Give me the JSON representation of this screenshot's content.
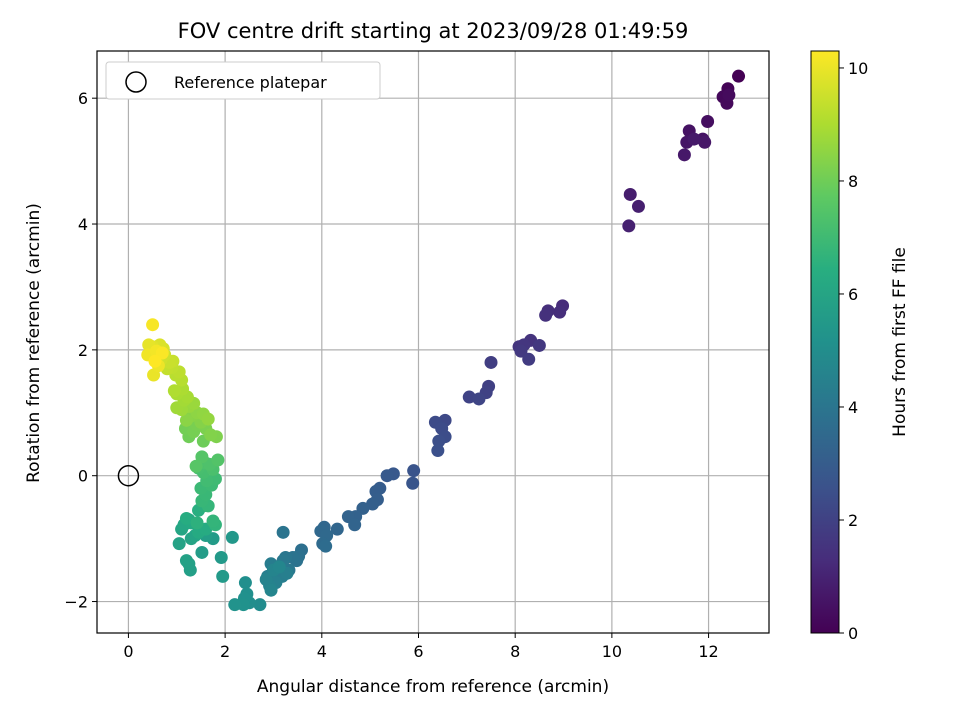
{
  "chart_data": {
    "type": "scatter",
    "title": "FOV centre drift starting at 2023/09/28 01:49:59",
    "xlabel": "Angular distance from reference (arcmin)",
    "ylabel": "Rotation from reference (arcmin)",
    "xlim": [
      -0.65,
      13.25
    ],
    "ylim": [
      -2.5,
      6.75
    ],
    "xticks": [
      0,
      2,
      4,
      6,
      8,
      10,
      12
    ],
    "yticks": [
      -2,
      0,
      2,
      4,
      6
    ],
    "grid": true,
    "colorbar": {
      "label": "Hours from first FF file",
      "range": [
        0,
        10.3
      ],
      "ticks": [
        0,
        2,
        4,
        6,
        8,
        10
      ],
      "colormap": "viridis"
    },
    "legend": {
      "location": "top-left",
      "entries": [
        {
          "label": "Reference platepar",
          "marker": "open-circle"
        }
      ]
    },
    "reference_point": {
      "x": 0,
      "y": 0
    },
    "points": [
      {
        "x": 12.62,
        "y": 6.35,
        "h": 0.0
      },
      {
        "x": 12.4,
        "y": 6.15,
        "h": 0.1
      },
      {
        "x": 12.3,
        "y": 6.02,
        "h": 0.2
      },
      {
        "x": 12.38,
        "y": 5.92,
        "h": 0.25
      },
      {
        "x": 12.42,
        "y": 6.05,
        "h": 0.3
      },
      {
        "x": 11.98,
        "y": 5.63,
        "h": 0.4
      },
      {
        "x": 11.6,
        "y": 5.48,
        "h": 0.5
      },
      {
        "x": 11.88,
        "y": 5.35,
        "h": 0.55
      },
      {
        "x": 11.55,
        "y": 5.3,
        "h": 0.6
      },
      {
        "x": 11.92,
        "y": 5.3,
        "h": 0.65
      },
      {
        "x": 11.5,
        "y": 5.1,
        "h": 0.7
      },
      {
        "x": 11.7,
        "y": 5.35,
        "h": 0.75
      },
      {
        "x": 10.38,
        "y": 4.47,
        "h": 0.85
      },
      {
        "x": 10.55,
        "y": 4.28,
        "h": 0.9
      },
      {
        "x": 10.35,
        "y": 3.97,
        "h": 0.95
      },
      {
        "x": 8.98,
        "y": 2.7,
        "h": 1.3
      },
      {
        "x": 8.92,
        "y": 2.6,
        "h": 1.35
      },
      {
        "x": 8.68,
        "y": 2.62,
        "h": 1.4
      },
      {
        "x": 8.63,
        "y": 2.55,
        "h": 1.45
      },
      {
        "x": 8.32,
        "y": 2.15,
        "h": 1.55
      },
      {
        "x": 8.08,
        "y": 2.05,
        "h": 1.6
      },
      {
        "x": 8.18,
        "y": 2.08,
        "h": 1.65
      },
      {
        "x": 8.5,
        "y": 2.07,
        "h": 1.7
      },
      {
        "x": 8.12,
        "y": 1.98,
        "h": 1.75
      },
      {
        "x": 8.28,
        "y": 1.85,
        "h": 1.8
      },
      {
        "x": 7.5,
        "y": 1.8,
        "h": 1.9
      },
      {
        "x": 7.45,
        "y": 1.42,
        "h": 2.0
      },
      {
        "x": 7.4,
        "y": 1.32,
        "h": 2.05
      },
      {
        "x": 7.05,
        "y": 1.25,
        "h": 2.1
      },
      {
        "x": 7.25,
        "y": 1.22,
        "h": 2.15
      },
      {
        "x": 6.55,
        "y": 0.88,
        "h": 2.3
      },
      {
        "x": 6.35,
        "y": 0.85,
        "h": 2.35
      },
      {
        "x": 6.48,
        "y": 0.75,
        "h": 2.4
      },
      {
        "x": 6.55,
        "y": 0.62,
        "h": 2.45
      },
      {
        "x": 6.42,
        "y": 0.55,
        "h": 2.5
      },
      {
        "x": 6.4,
        "y": 0.4,
        "h": 2.55
      },
      {
        "x": 5.9,
        "y": 0.08,
        "h": 2.7
      },
      {
        "x": 5.88,
        "y": -0.12,
        "h": 2.75
      },
      {
        "x": 5.48,
        "y": 0.03,
        "h": 2.85
      },
      {
        "x": 5.35,
        "y": 0.0,
        "h": 2.9
      },
      {
        "x": 5.2,
        "y": -0.2,
        "h": 3.0
      },
      {
        "x": 5.12,
        "y": -0.25,
        "h": 3.05
      },
      {
        "x": 5.15,
        "y": -0.38,
        "h": 3.1
      },
      {
        "x": 5.05,
        "y": -0.45,
        "h": 3.15
      },
      {
        "x": 4.85,
        "y": -0.52,
        "h": 3.2
      },
      {
        "x": 4.7,
        "y": -0.65,
        "h": 3.25
      },
      {
        "x": 4.55,
        "y": -0.65,
        "h": 3.3
      },
      {
        "x": 4.68,
        "y": -0.78,
        "h": 3.35
      },
      {
        "x": 4.32,
        "y": -0.85,
        "h": 3.4
      },
      {
        "x": 4.05,
        "y": -0.82,
        "h": 3.45
      },
      {
        "x": 3.98,
        "y": -0.88,
        "h": 3.5
      },
      {
        "x": 4.1,
        "y": -0.95,
        "h": 3.55
      },
      {
        "x": 4.02,
        "y": -1.08,
        "h": 3.6
      },
      {
        "x": 4.08,
        "y": -1.12,
        "h": 3.65
      },
      {
        "x": 3.58,
        "y": -1.18,
        "h": 3.8
      },
      {
        "x": 3.52,
        "y": -1.28,
        "h": 3.85
      },
      {
        "x": 3.48,
        "y": -1.35,
        "h": 3.9
      },
      {
        "x": 3.4,
        "y": -1.3,
        "h": 3.95
      },
      {
        "x": 3.2,
        "y": -0.9,
        "h": 4.0
      },
      {
        "x": 3.25,
        "y": -1.3,
        "h": 4.05
      },
      {
        "x": 3.32,
        "y": -1.5,
        "h": 4.1
      },
      {
        "x": 3.2,
        "y": -1.35,
        "h": 4.15
      },
      {
        "x": 3.1,
        "y": -1.45,
        "h": 4.2
      },
      {
        "x": 3.02,
        "y": -1.55,
        "h": 4.25
      },
      {
        "x": 2.95,
        "y": -1.4,
        "h": 4.3
      },
      {
        "x": 3.18,
        "y": -1.6,
        "h": 4.35
      },
      {
        "x": 2.88,
        "y": -1.6,
        "h": 4.4
      },
      {
        "x": 3.28,
        "y": -1.55,
        "h": 4.45
      },
      {
        "x": 3.05,
        "y": -1.7,
        "h": 4.5
      },
      {
        "x": 2.92,
        "y": -1.75,
        "h": 4.55
      },
      {
        "x": 2.85,
        "y": -1.65,
        "h": 4.6
      },
      {
        "x": 3.0,
        "y": -1.5,
        "h": 4.65
      },
      {
        "x": 2.95,
        "y": -1.82,
        "h": 4.7
      },
      {
        "x": 3.12,
        "y": -1.45,
        "h": 4.75
      },
      {
        "x": 2.72,
        "y": -2.05,
        "h": 5.0
      },
      {
        "x": 2.5,
        "y": -2.02,
        "h": 5.05
      },
      {
        "x": 2.42,
        "y": -1.7,
        "h": 5.1
      },
      {
        "x": 2.45,
        "y": -1.88,
        "h": 5.15
      },
      {
        "x": 2.4,
        "y": -1.95,
        "h": 5.2
      },
      {
        "x": 2.38,
        "y": -2.05,
        "h": 5.25
      },
      {
        "x": 2.2,
        "y": -2.05,
        "h": 5.3
      },
      {
        "x": 2.15,
        "y": -0.98,
        "h": 5.5
      },
      {
        "x": 1.92,
        "y": -1.3,
        "h": 5.55
      },
      {
        "x": 1.95,
        "y": -1.6,
        "h": 5.6
      },
      {
        "x": 1.75,
        "y": -1.0,
        "h": 5.65
      },
      {
        "x": 1.52,
        "y": -1.22,
        "h": 5.7
      },
      {
        "x": 1.6,
        "y": -0.95,
        "h": 5.75
      },
      {
        "x": 1.28,
        "y": -1.5,
        "h": 5.8
      },
      {
        "x": 1.25,
        "y": -1.4,
        "h": 5.85
      },
      {
        "x": 1.2,
        "y": -1.35,
        "h": 5.9
      },
      {
        "x": 1.05,
        "y": -1.08,
        "h": 5.95
      },
      {
        "x": 1.3,
        "y": -1.0,
        "h": 6.0
      },
      {
        "x": 1.38,
        "y": -0.95,
        "h": 6.05
      },
      {
        "x": 1.1,
        "y": -0.85,
        "h": 6.1
      },
      {
        "x": 1.15,
        "y": -0.78,
        "h": 6.15
      },
      {
        "x": 1.25,
        "y": -0.7,
        "h": 6.2
      },
      {
        "x": 1.3,
        "y": -0.75,
        "h": 6.25
      },
      {
        "x": 1.45,
        "y": -0.9,
        "h": 6.3
      },
      {
        "x": 1.6,
        "y": -0.85,
        "h": 6.35
      },
      {
        "x": 1.2,
        "y": -0.68,
        "h": 6.4
      },
      {
        "x": 1.45,
        "y": -0.55,
        "h": 6.5
      },
      {
        "x": 1.55,
        "y": -0.48,
        "h": 6.55
      },
      {
        "x": 1.42,
        "y": -0.75,
        "h": 6.6
      },
      {
        "x": 1.8,
        "y": -0.78,
        "h": 6.7
      },
      {
        "x": 1.75,
        "y": -0.72,
        "h": 6.75
      },
      {
        "x": 1.65,
        "y": -0.48,
        "h": 6.8
      },
      {
        "x": 1.52,
        "y": -0.4,
        "h": 6.85
      },
      {
        "x": 1.6,
        "y": -0.3,
        "h": 6.9
      },
      {
        "x": 1.5,
        "y": -0.2,
        "h": 6.95
      },
      {
        "x": 1.72,
        "y": -0.15,
        "h": 7.0
      },
      {
        "x": 1.8,
        "y": -0.05,
        "h": 7.05
      },
      {
        "x": 1.62,
        "y": -0.08,
        "h": 7.1
      },
      {
        "x": 1.55,
        "y": 0.05,
        "h": 7.2
      },
      {
        "x": 1.45,
        "y": 0.12,
        "h": 7.25
      },
      {
        "x": 1.75,
        "y": 0.1,
        "h": 7.3
      },
      {
        "x": 1.6,
        "y": 0.2,
        "h": 7.35
      },
      {
        "x": 1.68,
        "y": 0.18,
        "h": 7.4
      },
      {
        "x": 1.85,
        "y": 0.25,
        "h": 7.5
      },
      {
        "x": 1.52,
        "y": 0.3,
        "h": 7.55
      },
      {
        "x": 1.4,
        "y": 0.15,
        "h": 7.6
      },
      {
        "x": 1.55,
        "y": 0.55,
        "h": 8.0
      },
      {
        "x": 1.25,
        "y": 0.62,
        "h": 8.05
      },
      {
        "x": 1.18,
        "y": 0.75,
        "h": 8.1
      },
      {
        "x": 1.35,
        "y": 0.7,
        "h": 8.15
      },
      {
        "x": 1.4,
        "y": 0.82,
        "h": 8.2
      },
      {
        "x": 1.6,
        "y": 0.75,
        "h": 8.25
      },
      {
        "x": 1.82,
        "y": 0.62,
        "h": 8.3
      },
      {
        "x": 1.7,
        "y": 0.65,
        "h": 8.35
      },
      {
        "x": 1.5,
        "y": 0.85,
        "h": 8.4
      },
      {
        "x": 1.3,
        "y": 0.95,
        "h": 8.45
      },
      {
        "x": 1.2,
        "y": 0.88,
        "h": 8.5
      },
      {
        "x": 1.42,
        "y": 1.0,
        "h": 8.55
      },
      {
        "x": 1.55,
        "y": 0.98,
        "h": 8.6
      },
      {
        "x": 1.65,
        "y": 0.9,
        "h": 8.65
      },
      {
        "x": 1.25,
        "y": 1.1,
        "h": 8.7
      },
      {
        "x": 1.35,
        "y": 1.15,
        "h": 8.75
      },
      {
        "x": 1.1,
        "y": 1.05,
        "h": 8.8
      },
      {
        "x": 1.0,
        "y": 1.08,
        "h": 8.85
      },
      {
        "x": 1.15,
        "y": 1.2,
        "h": 8.9
      },
      {
        "x": 1.22,
        "y": 1.25,
        "h": 8.95
      },
      {
        "x": 1.0,
        "y": 1.3,
        "h": 9.0
      },
      {
        "x": 1.12,
        "y": 1.38,
        "h": 9.05
      },
      {
        "x": 0.95,
        "y": 1.35,
        "h": 9.1
      },
      {
        "x": 1.1,
        "y": 1.52,
        "h": 9.2
      },
      {
        "x": 0.98,
        "y": 1.6,
        "h": 9.25
      },
      {
        "x": 1.05,
        "y": 1.65,
        "h": 9.3
      },
      {
        "x": 0.9,
        "y": 1.72,
        "h": 9.35
      },
      {
        "x": 0.8,
        "y": 1.7,
        "h": 9.4
      },
      {
        "x": 0.92,
        "y": 1.82,
        "h": 9.45
      },
      {
        "x": 0.85,
        "y": 1.8,
        "h": 9.5
      },
      {
        "x": 0.75,
        "y": 1.92,
        "h": 9.55
      },
      {
        "x": 0.68,
        "y": 1.85,
        "h": 9.6
      },
      {
        "x": 0.6,
        "y": 1.9,
        "h": 9.65
      },
      {
        "x": 0.72,
        "y": 2.02,
        "h": 9.7
      },
      {
        "x": 0.65,
        "y": 2.08,
        "h": 9.75
      },
      {
        "x": 0.55,
        "y": 2.0,
        "h": 9.8
      },
      {
        "x": 0.5,
        "y": 2.05,
        "h": 9.85
      },
      {
        "x": 0.45,
        "y": 1.95,
        "h": 9.9
      },
      {
        "x": 0.42,
        "y": 2.08,
        "h": 9.95
      },
      {
        "x": 0.52,
        "y": 1.6,
        "h": 10.0
      },
      {
        "x": 0.62,
        "y": 1.75,
        "h": 10.05
      },
      {
        "x": 0.4,
        "y": 1.92,
        "h": 10.1
      },
      {
        "x": 0.58,
        "y": 1.98,
        "h": 10.15
      },
      {
        "x": 0.5,
        "y": 2.4,
        "h": 10.2
      },
      {
        "x": 0.7,
        "y": 1.95,
        "h": 10.25
      },
      {
        "x": 0.55,
        "y": 1.82,
        "h": 10.3
      }
    ]
  }
}
